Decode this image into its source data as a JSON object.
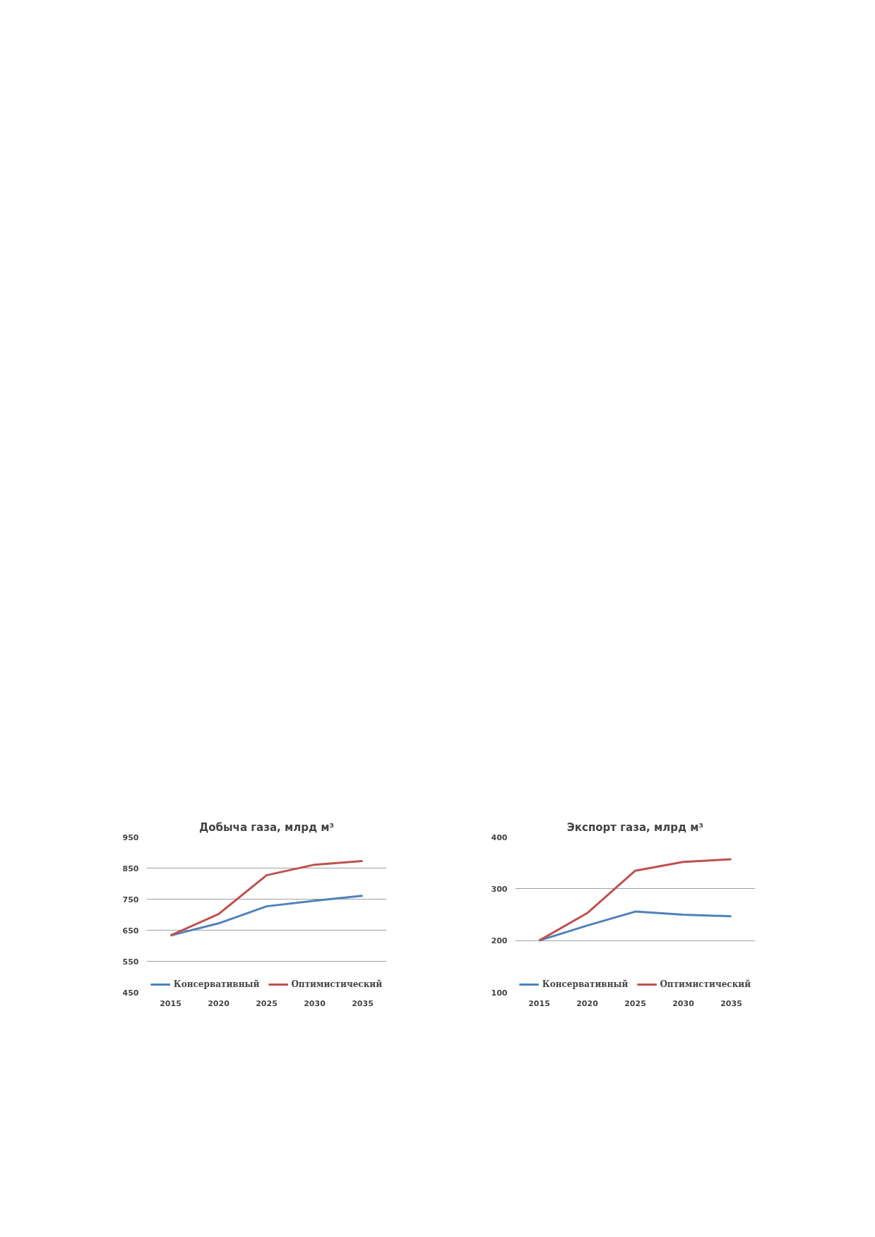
{
  "chart_data": [
    {
      "type": "line",
      "title": "Добыча газа, млрд м³",
      "categories": [
        "2015",
        "2020",
        "2025",
        "2030",
        "2035"
      ],
      "series": [
        {
          "name": "Консервативный",
          "color": "#4f81bd",
          "values": [
            633,
            672,
            727,
            745,
            761
          ]
        },
        {
          "name": "Оптимистический",
          "color": "#c0504d",
          "values": [
            633,
            702,
            827,
            861,
            873
          ]
        }
      ],
      "ylim": [
        450,
        950
      ],
      "yticks": [
        450,
        550,
        650,
        750,
        850,
        950
      ],
      "grid": "y",
      "legend": "bottom"
    },
    {
      "type": "line",
      "title": "Экспорт газа, млрд м³",
      "categories": [
        "2015",
        "2020",
        "2025",
        "2030",
        "2035"
      ],
      "series": [
        {
          "name": "Консервативный",
          "color": "#4f81bd",
          "values": [
            200,
            229,
            256,
            250,
            247
          ]
        },
        {
          "name": "Оптимистический",
          "color": "#c0504d",
          "values": [
            200,
            253,
            335,
            352,
            357
          ]
        }
      ],
      "ylim": [
        100,
        400
      ],
      "yticks": [
        100,
        200,
        300,
        400
      ],
      "grid": "y",
      "legend": "bottom"
    }
  ]
}
